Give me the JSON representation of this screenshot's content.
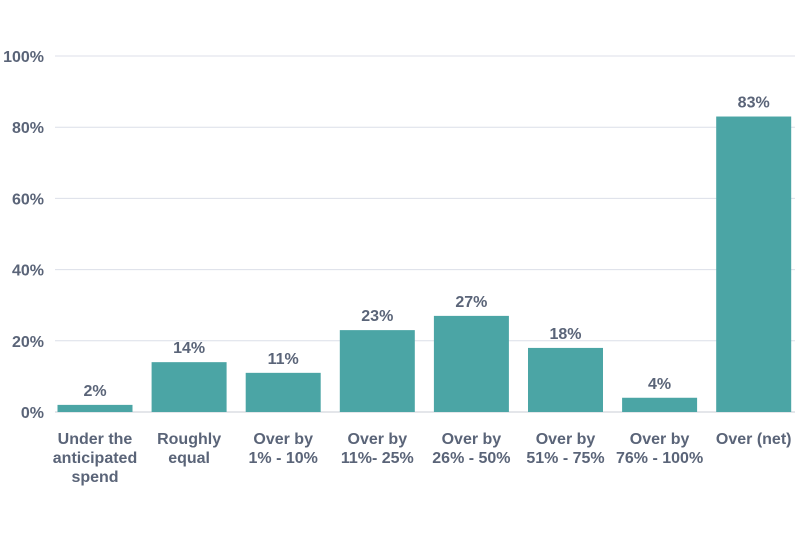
{
  "chart_data": {
    "type": "bar",
    "categories": [
      [
        "Under the",
        "anticipated",
        "spend"
      ],
      [
        "Roughly",
        "equal"
      ],
      [
        "Over by",
        "1% - 10%"
      ],
      [
        "Over by",
        "11%- 25%"
      ],
      [
        "Over by",
        "26% - 50%"
      ],
      [
        "Over by",
        "51% - 75%"
      ],
      [
        "Over by",
        "76% - 100%"
      ],
      [
        "Over (net)"
      ]
    ],
    "values": [
      2,
      14,
      11,
      23,
      27,
      18,
      4,
      83
    ],
    "data_labels": [
      "2%",
      "14%",
      "11%",
      "23%",
      "27%",
      "18%",
      "4%",
      "83%"
    ],
    "ylim": [
      0,
      100
    ],
    "yticks": [
      0,
      20,
      40,
      60,
      80,
      100
    ],
    "ytick_labels": [
      "0%",
      "20%",
      "40%",
      "60%",
      "80%",
      "100%"
    ],
    "title": "",
    "xlabel": "",
    "ylabel": "",
    "grid": true,
    "legend": "none",
    "bar_color": "#4ba5a5",
    "text_color": "#5a6478",
    "grid_color": "#dcdfe8"
  }
}
